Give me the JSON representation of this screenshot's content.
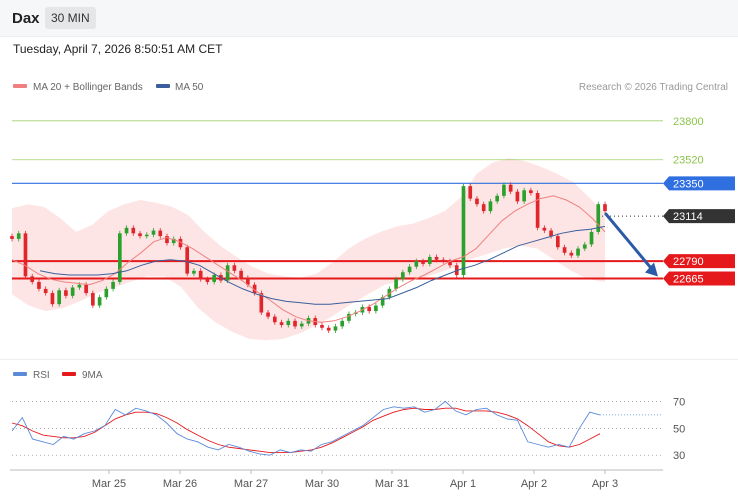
{
  "header": {
    "symbol": "Dax",
    "timeframe": "30 MIN",
    "datetime": "Tuesday, April 7, 2026 8:50:51 AM CET"
  },
  "colors": {
    "bull": "#2ca02c",
    "bear": "#e0252b",
    "ma20": "#f08080",
    "ma50": "#3a5f9a",
    "band": "#fde1e1",
    "support": "#e5191c",
    "resistance_blue": "#2f6fe0",
    "target_green": "#8bc34a",
    "rsi": "#5b8ad9",
    "rsi_ma": "#e5191c",
    "arrow": "#2b5aa6"
  },
  "legend": {
    "ma20_label": "MA 20 + Bollinger Bands",
    "ma50_label": "MA 50",
    "credit": "Research © 2026 Trading Central"
  },
  "chart_data": [
    {
      "type": "candlestick",
      "title": "Dax",
      "timeframe": "30 MIN",
      "x_tick_labels": [
        "Mar 25",
        "Mar 26",
        "Mar 27",
        "Mar 30",
        "Mar 31",
        "Apr 1",
        "Apr 2",
        "Apr 3"
      ],
      "y_range": [
        22150,
        23950
      ],
      "key_levels": [
        {
          "label": "23800",
          "value": 23800,
          "style": "target"
        },
        {
          "label": "23520",
          "value": 23520,
          "style": "target"
        },
        {
          "label": "23350",
          "value": 23350,
          "style": "resistance"
        },
        {
          "label": "23114",
          "value": 23114,
          "style": "last_price"
        },
        {
          "label": "22790",
          "value": 22790,
          "style": "support"
        },
        {
          "label": "22665",
          "value": 22665,
          "style": "support"
        }
      ],
      "projection": {
        "from": 23114,
        "to": 22665,
        "direction": "down"
      },
      "close_series": [
        22950,
        22990,
        22680,
        22640,
        22590,
        22560,
        22480,
        22580,
        22540,
        22600,
        22620,
        22560,
        22470,
        22530,
        22590,
        22640,
        22990,
        23030,
        22990,
        22970,
        22980,
        23010,
        22970,
        22920,
        22950,
        22890,
        22700,
        22720,
        22660,
        22640,
        22690,
        22650,
        22760,
        22720,
        22670,
        22620,
        22560,
        22420,
        22390,
        22350,
        22330,
        22360,
        22320,
        22340,
        22380,
        22330,
        22310,
        22290,
        22320,
        22360,
        22410,
        22420,
        22460,
        22430,
        22470,
        22530,
        22590,
        22660,
        22710,
        22750,
        22790,
        22770,
        22820,
        22800,
        22790,
        22760,
        22690,
        23330,
        23240,
        23200,
        23150,
        23220,
        23260,
        23340,
        23290,
        23220,
        23300,
        23280,
        23030,
        23010,
        22970,
        22890,
        22850,
        22830,
        22880,
        22910,
        23000,
        23200,
        23150
      ],
      "ma20": [
        22800,
        22760,
        22700,
        22660,
        22640,
        22630,
        22620,
        22650,
        22700,
        22780,
        22850,
        22930,
        22960,
        22930,
        22880,
        22820,
        22760,
        22700,
        22640,
        22570,
        22510,
        22440,
        22390,
        22360,
        22350,
        22360,
        22390,
        22430,
        22480,
        22540,
        22600,
        22650,
        22690,
        22740,
        22790,
        22820,
        22880,
        22980,
        23080,
        23150,
        23200,
        23240,
        23260,
        23230,
        23180,
        23100,
        23000
      ],
      "ma50": [
        22720,
        22700,
        22690,
        22690,
        22690,
        22700,
        22720,
        22760,
        22790,
        22800,
        22790,
        22760,
        22700,
        22640,
        22590,
        22550,
        22520,
        22500,
        22490,
        22480,
        22480,
        22490,
        22500,
        22510,
        22520,
        22560,
        22600,
        22650,
        22690,
        22730,
        22760,
        22800,
        22850,
        22900,
        22930,
        22960,
        22990,
        23010,
        23020,
        23040
      ],
      "bb_upper": [
        23170,
        23200,
        23180,
        23100,
        23000,
        23050,
        23150,
        23200,
        23230,
        23210,
        23180,
        23120,
        23000,
        22900,
        22820,
        22750,
        22700,
        22680,
        22670,
        22700,
        22780,
        22880,
        22950,
        23000,
        23040,
        23060,
        23100,
        23150,
        23250,
        23420,
        23500,
        23530,
        23510,
        23470,
        23420,
        23360,
        23250,
        23130
      ],
      "bb_lower": [
        22550,
        22470,
        22430,
        22450,
        22500,
        22560,
        22600,
        22640,
        22680,
        22680,
        22600,
        22450,
        22350,
        22280,
        22230,
        22220,
        22230,
        22270,
        22330,
        22400,
        22480,
        22550,
        22620,
        22650,
        22660,
        22700,
        22740,
        22800,
        22840,
        22880,
        22900,
        22880,
        22800,
        22720,
        22660,
        22640
      ]
    },
    {
      "type": "line",
      "title": "RSI",
      "series": [
        {
          "name": "RSI",
          "values": [
            48,
            58,
            42,
            40,
            38,
            44,
            42,
            46,
            48,
            52,
            64,
            60,
            65,
            63,
            60,
            54,
            46,
            42,
            40,
            36,
            34,
            38,
            36,
            33,
            31,
            30,
            34,
            32,
            34,
            33,
            38,
            40,
            44,
            48,
            52,
            58,
            64,
            66,
            65,
            66,
            62,
            64,
            70,
            63,
            60,
            64,
            65,
            60,
            57,
            56,
            40,
            38,
            36,
            38,
            36,
            50,
            62,
            60
          ]
        },
        {
          "name": "9MA",
          "values": [
            54,
            52,
            48,
            45,
            44,
            43,
            43,
            44,
            47,
            52,
            57,
            60,
            62,
            62,
            61,
            58,
            54,
            49,
            45,
            41,
            38,
            36,
            35,
            34,
            33,
            32,
            32,
            32,
            33,
            34,
            36,
            39,
            43,
            47,
            51,
            56,
            59,
            62,
            64,
            65,
            64,
            64,
            65,
            65,
            63,
            63,
            63,
            62,
            60,
            57,
            52,
            46,
            40,
            37,
            36,
            38,
            42,
            46
          ]
        }
      ],
      "y_tick_labels": [
        "70",
        "50",
        "30"
      ],
      "y_range": [
        22,
        80
      ]
    }
  ]
}
